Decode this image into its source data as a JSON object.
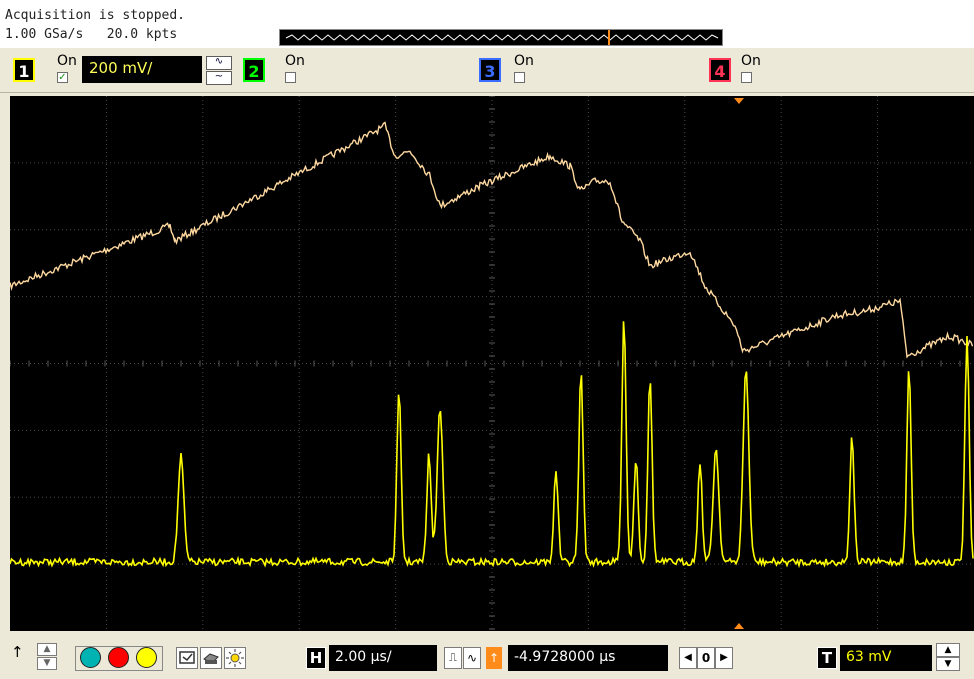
{
  "status": {
    "line1": "Acquisition is stopped.",
    "line2": "1.00 GSa/s   20.0 kpts"
  },
  "channels": [
    {
      "number": "1",
      "on_label": "On",
      "enabled": true,
      "color": "#ffff00",
      "scale": "200 mV/"
    },
    {
      "number": "2",
      "on_label": "On",
      "enabled": false,
      "color": "#00ff00"
    },
    {
      "number": "3",
      "on_label": "On",
      "enabled": false,
      "color": "#3a6cff"
    },
    {
      "number": "4",
      "on_label": "On",
      "enabled": false,
      "color": "#ff3355"
    }
  ],
  "horizontal": {
    "letter": "H",
    "scale": "2.00 µs/",
    "delay": "-4.9728000 µs",
    "ref_value": "0"
  },
  "trigger": {
    "letter": "T",
    "level": "63 mV"
  },
  "colors": {
    "trace_yellow": "#ffff00",
    "trace_ramp": "#ffd9a0",
    "trigger_marker": "#ff8c1a"
  },
  "icons": {
    "run_buttons": [
      "teal-circle",
      "red-circle",
      "yellow-circle"
    ],
    "tools": [
      "screen-capture-icon",
      "print-icon",
      "brightness-icon"
    ]
  }
}
